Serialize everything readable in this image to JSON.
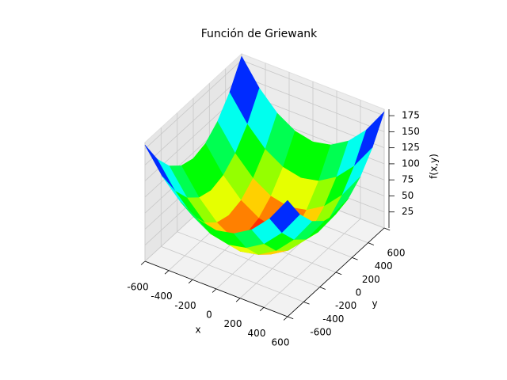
{
  "chart_data": {
    "type": "surface",
    "title": "Función de Griewank",
    "x_label": "x",
    "y_label": "y",
    "z_label": "f(x,y)",
    "x": [
      -600,
      -450,
      -300,
      -150,
      0,
      150,
      300,
      450,
      600
    ],
    "y": [
      -600,
      -450,
      -300,
      -150,
      0,
      150,
      300,
      450,
      600
    ],
    "z": [
      [
        181,
        142,
        114,
        97,
        91,
        97,
        114,
        142,
        181
      ],
      [
        142,
        103,
        75,
        58,
        52,
        58,
        75,
        103,
        142
      ],
      [
        114,
        75,
        47,
        30,
        24,
        30,
        47,
        75,
        114
      ],
      [
        97,
        58,
        30,
        13,
        7,
        13,
        30,
        58,
        97
      ],
      [
        91,
        52,
        24,
        7,
        1,
        7,
        24,
        52,
        91
      ],
      [
        97,
        58,
        30,
        13,
        7,
        13,
        30,
        58,
        97
      ],
      [
        114,
        75,
        47,
        30,
        24,
        30,
        47,
        75,
        114
      ],
      [
        142,
        103,
        75,
        58,
        52,
        58,
        75,
        103,
        142
      ],
      [
        181,
        142,
        114,
        97,
        91,
        97,
        114,
        142,
        181
      ]
    ],
    "xlim": [
      -600,
      600
    ],
    "ylim": [
      -600,
      600
    ],
    "zlim": [
      0,
      185
    ],
    "xticks": [
      -600,
      -400,
      -200,
      0,
      200,
      400,
      600
    ],
    "yticks": [
      -600,
      -400,
      -200,
      0,
      200,
      400,
      600
    ],
    "zticks": [
      25,
      50,
      75,
      100,
      125,
      150,
      175
    ],
    "colormap": "gist_rainbow",
    "grid": true
  }
}
